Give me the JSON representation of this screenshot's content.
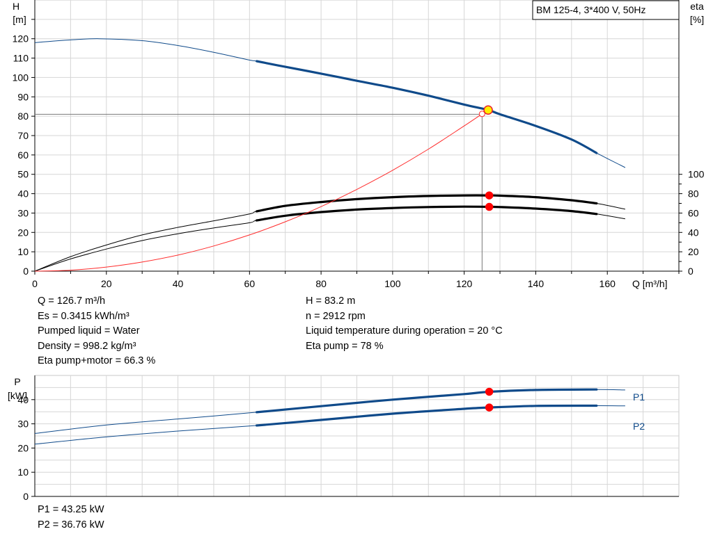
{
  "chart_data": [
    {
      "type": "line",
      "title": "BM 125-4, 3*400 V, 50Hz",
      "xlabel": "Q [m³/h]",
      "ylabel_left": [
        "H",
        "[m]"
      ],
      "ylabel_right": [
        "eta",
        "[%]"
      ],
      "xlim": [
        0,
        180
      ],
      "ylim": [
        0,
        140
      ],
      "y2lim": [
        0,
        140
      ],
      "x_ticks": [
        "0",
        "20",
        "40",
        "60",
        "80",
        "100",
        "120",
        "140",
        "160"
      ],
      "y_ticks": [
        "0",
        "10",
        "20",
        "30",
        "40",
        "50",
        "60",
        "70",
        "80",
        "90",
        "100",
        "110",
        "120"
      ],
      "y2_ticks": [
        "0",
        "20",
        "40",
        "60",
        "80",
        "100"
      ],
      "grid": true,
      "series": [
        {
          "id": "H",
          "color": "#0f4a8a",
          "x": [
            0,
            10,
            18,
            30,
            40,
            50,
            60,
            62,
            70,
            80,
            90,
            100,
            110,
            120,
            126.7,
            130,
            140,
            150,
            157,
            165
          ],
          "y": [
            118,
            119.4,
            120,
            119,
            116.5,
            113,
            109,
            108.4,
            105.5,
            102,
            98.3,
            94.7,
            90.6,
            86,
            83.2,
            81,
            75,
            68,
            61,
            53.5
          ],
          "bold_range": [
            62,
            157
          ]
        },
        {
          "id": "eta_upper",
          "color": "#000000",
          "x": [
            0,
            10,
            20,
            30,
            40,
            50,
            60,
            62,
            70,
            80,
            90,
            100,
            110,
            120,
            127,
            130,
            140,
            150,
            157,
            165
          ],
          "y": [
            0,
            7.5,
            13.5,
            18.7,
            22.6,
            26,
            29.5,
            30.9,
            33.7,
            35.7,
            37.2,
            38.2,
            38.8,
            39.1,
            39.1,
            39,
            38.2,
            36.6,
            35,
            32
          ],
          "bold_range": [
            62,
            157
          ]
        },
        {
          "id": "eta_lower",
          "color": "#000000",
          "x": [
            0,
            10,
            20,
            30,
            40,
            50,
            60,
            62,
            70,
            80,
            90,
            100,
            110,
            120,
            127,
            130,
            140,
            150,
            157,
            165
          ],
          "y": [
            0,
            6.3,
            11.4,
            15.8,
            19.3,
            22.3,
            25,
            26.2,
            28.6,
            30.5,
            31.8,
            32.6,
            33.1,
            33.3,
            33.2,
            33.1,
            32.3,
            31,
            29.5,
            27
          ],
          "bold_range": [
            62,
            157
          ]
        },
        {
          "id": "system_curve",
          "color": "#ff2b2b",
          "x": [
            0,
            10,
            20,
            30,
            40,
            50,
            60,
            70,
            80,
            90,
            100,
            110,
            120,
            125
          ],
          "y": [
            0,
            0.5,
            2.1,
            4.7,
            8.3,
            13,
            18.7,
            25.5,
            33.3,
            42.2,
            52.1,
            63,
            75,
            81.2
          ]
        }
      ],
      "markers": [
        {
          "x": 126.7,
          "y": 83.2,
          "fill": "#ffee00",
          "stroke": "#e8212d",
          "r": 6
        },
        {
          "x": 127,
          "y": 39.1,
          "fill": "#ff0000",
          "stroke": "#ff0000",
          "r": 5
        },
        {
          "x": 127,
          "y": 33.2,
          "fill": "#ff0000",
          "stroke": "#ff0000",
          "r": 5
        }
      ],
      "open_marker": {
        "x": 125,
        "y": 81.2,
        "stroke": "#ff2b2b"
      },
      "guide": {
        "x": 125,
        "y": 81
      }
    },
    {
      "type": "line",
      "xlabel": "",
      "ylabel_left": [
        "P",
        "[kW]"
      ],
      "xlim": [
        0,
        180
      ],
      "ylim": [
        0,
        50
      ],
      "y_ticks": [
        "0",
        "10",
        "20",
        "30",
        "40"
      ],
      "grid": true,
      "series": [
        {
          "id": "P1",
          "name": "P1",
          "color": "#0f4a8a",
          "x": [
            0,
            20,
            40,
            62,
            80,
            100,
            120,
            127,
            140,
            157,
            165
          ],
          "y": [
            26,
            29.5,
            32,
            34.8,
            37.3,
            40,
            42.3,
            43.25,
            44,
            44.2,
            44
          ],
          "bold_range": [
            62,
            157
          ]
        },
        {
          "id": "P2",
          "name": "P2",
          "color": "#0f4a8a",
          "x": [
            0,
            20,
            40,
            62,
            80,
            100,
            120,
            127,
            140,
            157,
            165
          ],
          "y": [
            21.6,
            24.6,
            27,
            29.3,
            31.6,
            34.2,
            36.2,
            36.76,
            37.4,
            37.5,
            37.4
          ],
          "bold_range": [
            62,
            157
          ]
        }
      ],
      "markers": [
        {
          "x": 127,
          "y": 43.25,
          "fill": "#ff0000",
          "stroke": "#ff0000",
          "r": 5
        },
        {
          "x": 127,
          "y": 36.76,
          "fill": "#ff0000",
          "stroke": "#ff0000",
          "r": 5
        }
      ]
    }
  ],
  "info": {
    "left": [
      "Q = 126.7 m³/h",
      "Es = 0.3415 kWh/m³",
      "Pumped liquid = Water",
      "Density = 998.2 kg/m³",
      "Eta pump+motor = 66.3 %"
    ],
    "right": [
      "H = 83.2 m",
      "n = 2912 rpm",
      "Liquid temperature during operation = 20 °C",
      "Eta pump = 78 %"
    ],
    "power": [
      "P1 = 43.25 kW",
      "P2 = 36.76 kW"
    ]
  }
}
